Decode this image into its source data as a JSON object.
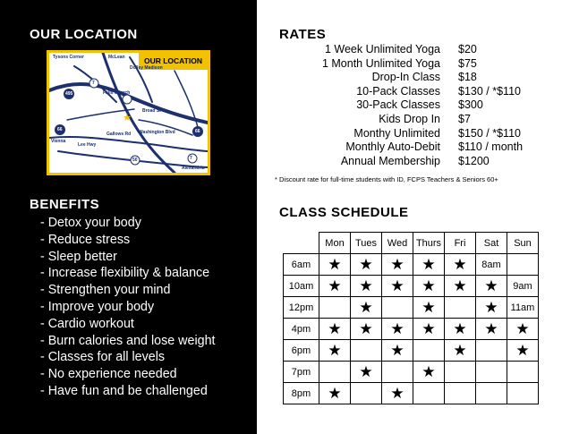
{
  "location": {
    "heading": "OUR LOCATION",
    "map_badge": "OUR LOCATION",
    "map_labels": [
      "Tysons Corner",
      "McLean",
      "Dolley Madison",
      "495",
      "7",
      "Falls Church",
      "Vienna",
      "Lee Hwy",
      "Gallows Rd",
      "Broad St",
      "Washington Blvd",
      "66",
      "66",
      "50",
      "7",
      "Alexandria"
    ]
  },
  "benefits": {
    "heading": "BENEFITS",
    "items": [
      "Detox your body",
      "Reduce stress",
      "Sleep better",
      "Increase flexibility & balance",
      "Strengthen your mind",
      "Improve your body",
      "Cardio workout",
      "Burn calories and lose weight",
      "Classes for all levels",
      "No experience needed",
      "Have fun and be challenged"
    ]
  },
  "rates": {
    "heading": "RATES",
    "items": [
      {
        "name": "1 Week Unlimited Yoga",
        "price": "$20"
      },
      {
        "name": "1 Month Unlimited Yoga",
        "price": "$75"
      },
      {
        "name": "Drop-In Class",
        "price": "$18"
      },
      {
        "name": "10-Pack Classes",
        "price": "$130 / *$110"
      },
      {
        "name": "30-Pack Classes",
        "price": "$300"
      },
      {
        "name": "Kids Drop In",
        "price": "$7"
      },
      {
        "name": "Monthy Unlimited",
        "price": "$150 / *$110"
      },
      {
        "name": "Monthly Auto-Debit",
        "price": "$110 / month"
      },
      {
        "name": "Annual Membership",
        "price": "$1200"
      }
    ],
    "footnote": "* Discount rate for full-time students with ID, FCPS Teachers & Seniors 60+"
  },
  "schedule": {
    "heading": "CLASS SCHEDULE",
    "days": [
      "Mon",
      "Tues",
      "Wed",
      "Thurs",
      "Fri",
      "Sat",
      "Sun"
    ],
    "star_glyph": "★",
    "rows": [
      {
        "time": "6am",
        "cells": [
          "★",
          "★",
          "★",
          "★",
          "★",
          "8am",
          ""
        ]
      },
      {
        "time": "10am",
        "cells": [
          "★",
          "★",
          "★",
          "★",
          "★",
          "★",
          "9am"
        ]
      },
      {
        "time": "12pm",
        "cells": [
          "",
          "★",
          "",
          "★",
          "",
          "★",
          "11am"
        ]
      },
      {
        "time": "4pm",
        "cells": [
          "★",
          "★",
          "★",
          "★",
          "★",
          "★",
          "★"
        ]
      },
      {
        "time": "6pm",
        "cells": [
          "★",
          "",
          "★",
          "",
          "★",
          "",
          "★"
        ]
      },
      {
        "time": "7pm",
        "cells": [
          "",
          "★",
          "",
          "★",
          "",
          "",
          ""
        ]
      },
      {
        "time": "8pm",
        "cells": [
          "★",
          "",
          "★",
          "",
          "",
          "",
          ""
        ]
      }
    ]
  },
  "colors": {
    "left_panel": "#000000",
    "map_border": "#f2c200",
    "road": "#1c2f6e"
  }
}
